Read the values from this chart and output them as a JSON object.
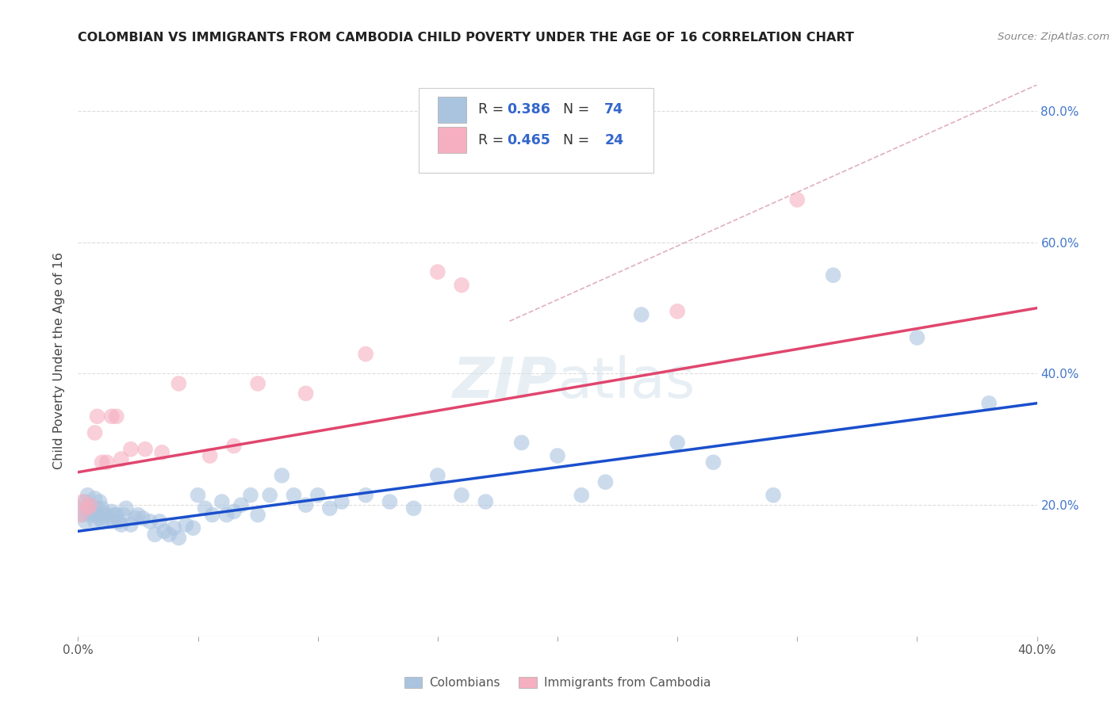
{
  "title": "COLOMBIAN VS IMMIGRANTS FROM CAMBODIA CHILD POVERTY UNDER THE AGE OF 16 CORRELATION CHART",
  "source": "Source: ZipAtlas.com",
  "ylabel": "Child Poverty Under the Age of 16",
  "x_min": 0.0,
  "x_max": 0.4,
  "y_min": 0.0,
  "y_max": 0.84,
  "x_ticks": [
    0.0,
    0.05,
    0.1,
    0.15,
    0.2,
    0.25,
    0.3,
    0.35,
    0.4
  ],
  "x_tick_labels": [
    "0.0%",
    "",
    "",
    "",
    "",
    "",
    "",
    "",
    "40.0%"
  ],
  "y_ticks": [
    0.0,
    0.2,
    0.4,
    0.6,
    0.8
  ],
  "y_tick_labels_right": [
    "",
    "20.0%",
    "40.0%",
    "60.0%",
    "80.0%"
  ],
  "colombian_R": 0.386,
  "colombian_N": 74,
  "cambodian_R": 0.465,
  "cambodian_N": 24,
  "colombian_color": "#aac4e0",
  "cambodian_color": "#f5afc0",
  "blue_line_color": "#1a4fcc",
  "pink_line_color": "#e0466e",
  "dashed_line_color": "#e0b0c0",
  "watermark_zip": "ZIP",
  "watermark_atlas": "atlas",
  "legend_label1": "R = 0.386   N = 74",
  "legend_label2": "R = 0.465   N = 24",
  "bottom_label1": "Colombians",
  "bottom_label2": "Immigrants from Cambodia",
  "colombian_scatter_x": [
    0.001,
    0.002,
    0.003,
    0.003,
    0.004,
    0.004,
    0.005,
    0.005,
    0.006,
    0.007,
    0.007,
    0.008,
    0.008,
    0.009,
    0.009,
    0.01,
    0.01,
    0.011,
    0.012,
    0.013,
    0.014,
    0.015,
    0.015,
    0.016,
    0.017,
    0.018,
    0.019,
    0.02,
    0.022,
    0.024,
    0.025,
    0.027,
    0.03,
    0.032,
    0.034,
    0.036,
    0.038,
    0.04,
    0.042,
    0.045,
    0.048,
    0.05,
    0.053,
    0.056,
    0.06,
    0.062,
    0.065,
    0.068,
    0.072,
    0.075,
    0.08,
    0.085,
    0.09,
    0.095,
    0.1,
    0.105,
    0.11,
    0.12,
    0.13,
    0.14,
    0.15,
    0.16,
    0.17,
    0.185,
    0.2,
    0.21,
    0.22,
    0.235,
    0.25,
    0.265,
    0.29,
    0.315,
    0.35,
    0.38
  ],
  "colombian_scatter_y": [
    0.195,
    0.185,
    0.175,
    0.205,
    0.195,
    0.215,
    0.2,
    0.185,
    0.19,
    0.21,
    0.175,
    0.185,
    0.195,
    0.18,
    0.205,
    0.175,
    0.195,
    0.185,
    0.185,
    0.175,
    0.19,
    0.185,
    0.175,
    0.185,
    0.175,
    0.17,
    0.185,
    0.195,
    0.17,
    0.18,
    0.185,
    0.18,
    0.175,
    0.155,
    0.175,
    0.16,
    0.155,
    0.165,
    0.15,
    0.17,
    0.165,
    0.215,
    0.195,
    0.185,
    0.205,
    0.185,
    0.19,
    0.2,
    0.215,
    0.185,
    0.215,
    0.245,
    0.215,
    0.2,
    0.215,
    0.195,
    0.205,
    0.215,
    0.205,
    0.195,
    0.245,
    0.215,
    0.205,
    0.295,
    0.275,
    0.215,
    0.235,
    0.49,
    0.295,
    0.265,
    0.215,
    0.55,
    0.455,
    0.355
  ],
  "cambodian_scatter_x": [
    0.001,
    0.002,
    0.004,
    0.005,
    0.007,
    0.008,
    0.01,
    0.012,
    0.014,
    0.016,
    0.018,
    0.022,
    0.028,
    0.035,
    0.042,
    0.055,
    0.065,
    0.075,
    0.095,
    0.12,
    0.15,
    0.16,
    0.25,
    0.3
  ],
  "cambodian_scatter_y": [
    0.185,
    0.205,
    0.195,
    0.2,
    0.31,
    0.335,
    0.265,
    0.265,
    0.335,
    0.335,
    0.27,
    0.285,
    0.285,
    0.28,
    0.385,
    0.275,
    0.29,
    0.385,
    0.37,
    0.43,
    0.555,
    0.535,
    0.495,
    0.665
  ],
  "colombian_trendline_x": [
    0.0,
    0.4
  ],
  "colombian_trendline_y": [
    0.16,
    0.355
  ],
  "cambodian_trendline_x": [
    0.0,
    0.4
  ],
  "cambodian_trendline_y": [
    0.25,
    0.5
  ],
  "dashed_trendline_x": [
    0.18,
    0.4
  ],
  "dashed_trendline_y": [
    0.48,
    0.84
  ]
}
